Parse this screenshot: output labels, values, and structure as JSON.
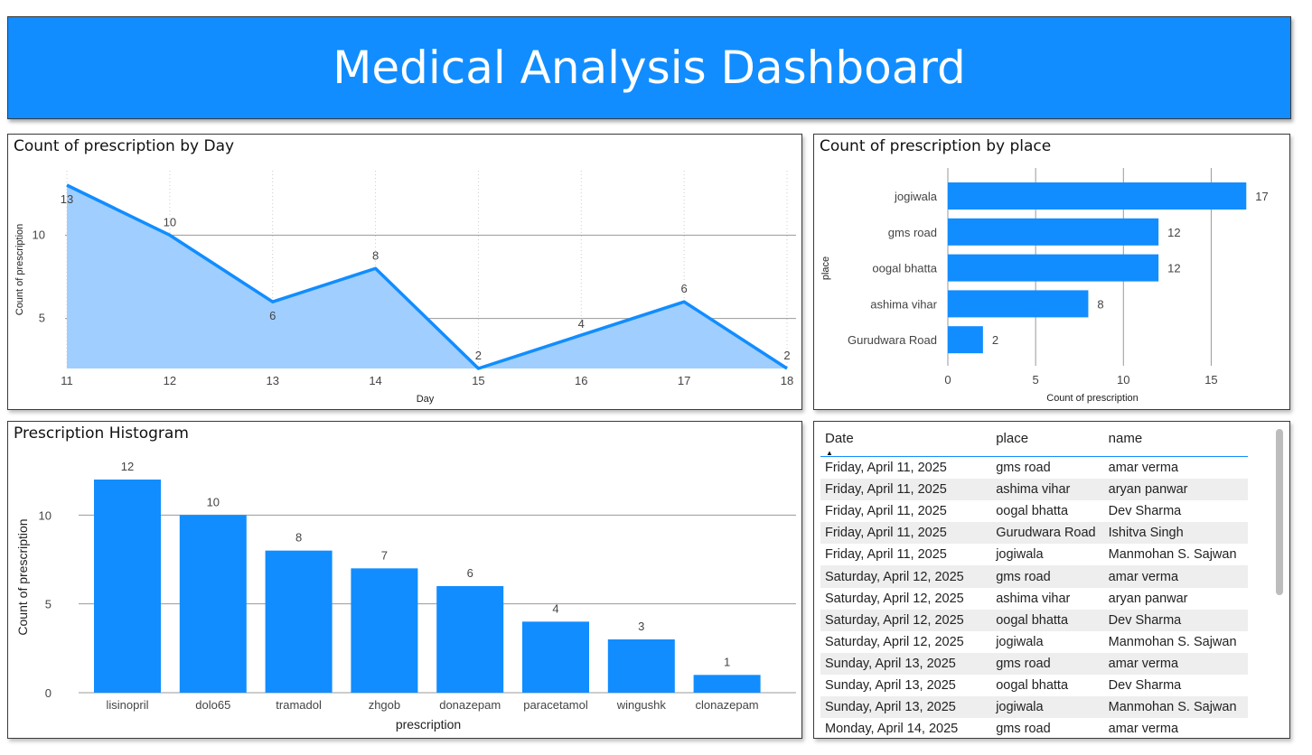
{
  "header": {
    "title": "Medical Analysis Dashboard"
  },
  "colors": {
    "accent": "#118dff",
    "area_fill": "#a0ceff",
    "gridline": "#999999"
  },
  "line_panel": {
    "title": "Count of prescription by Day"
  },
  "place_panel": {
    "title": "Count of prescription by place"
  },
  "hist_panel": {
    "title": "Prescription Histogram"
  },
  "chart_data": [
    {
      "type": "area",
      "title": "Count of prescription by Day",
      "xlabel": "Day",
      "ylabel": "Count of prescription",
      "x": [
        11,
        12,
        13,
        14,
        15,
        16,
        17,
        18
      ],
      "values": [
        13,
        10,
        6,
        8,
        2,
        4,
        6,
        2
      ],
      "y_ticks": [
        5,
        10
      ],
      "ylim": [
        2,
        13
      ],
      "grid": true,
      "data_labels": true
    },
    {
      "type": "bar",
      "orientation": "horizontal",
      "title": "Count of prescription by place",
      "xlabel": "Count of prescription",
      "ylabel": "place",
      "categories": [
        "jogiwala",
        "gms road",
        "oogal bhatta",
        "ashima vihar",
        "Gurudwara Road"
      ],
      "values": [
        17,
        12,
        12,
        8,
        2
      ],
      "x_ticks": [
        0,
        5,
        10,
        15
      ],
      "xlim": [
        0,
        17.5
      ],
      "grid": true,
      "data_labels": true
    },
    {
      "type": "bar",
      "title": "Prescription Histogram",
      "xlabel": "prescription",
      "ylabel": "Count of prescription",
      "categories": [
        "lisinopril",
        "dolo65",
        "tramadol",
        "zhgob",
        "donazepam",
        "paracetamol",
        "wingushk",
        "clonazepam"
      ],
      "values": [
        12,
        10,
        8,
        7,
        6,
        4,
        3,
        1
      ],
      "y_ticks": [
        0,
        5,
        10
      ],
      "ylim": [
        0,
        12
      ],
      "grid": true,
      "data_labels": true
    }
  ],
  "table": {
    "columns": [
      "Date",
      "place",
      "name"
    ],
    "sort_indicator": "▲",
    "rows": [
      [
        "Friday, April 11, 2025",
        "gms road",
        "amar verma"
      ],
      [
        "Friday, April 11, 2025",
        "ashima vihar",
        "aryan panwar"
      ],
      [
        "Friday, April 11, 2025",
        "oogal bhatta",
        "Dev Sharma"
      ],
      [
        "Friday, April 11, 2025",
        "Gurudwara Road",
        "Ishitva Singh"
      ],
      [
        "Friday, April 11, 2025",
        "jogiwala",
        "Manmohan S. Sajwan"
      ],
      [
        "Saturday, April 12, 2025",
        "gms road",
        "amar verma"
      ],
      [
        "Saturday, April 12, 2025",
        "ashima vihar",
        "aryan panwar"
      ],
      [
        "Saturday, April 12, 2025",
        "oogal bhatta",
        "Dev Sharma"
      ],
      [
        "Saturday, April 12, 2025",
        "jogiwala",
        "Manmohan S. Sajwan"
      ],
      [
        "Sunday, April 13, 2025",
        "gms road",
        "amar verma"
      ],
      [
        "Sunday, April 13, 2025",
        "oogal bhatta",
        "Dev Sharma"
      ],
      [
        "Sunday, April 13, 2025",
        "jogiwala",
        "Manmohan S. Sajwan"
      ],
      [
        "Monday, April 14, 2025",
        "gms road",
        "amar verma"
      ]
    ]
  }
}
